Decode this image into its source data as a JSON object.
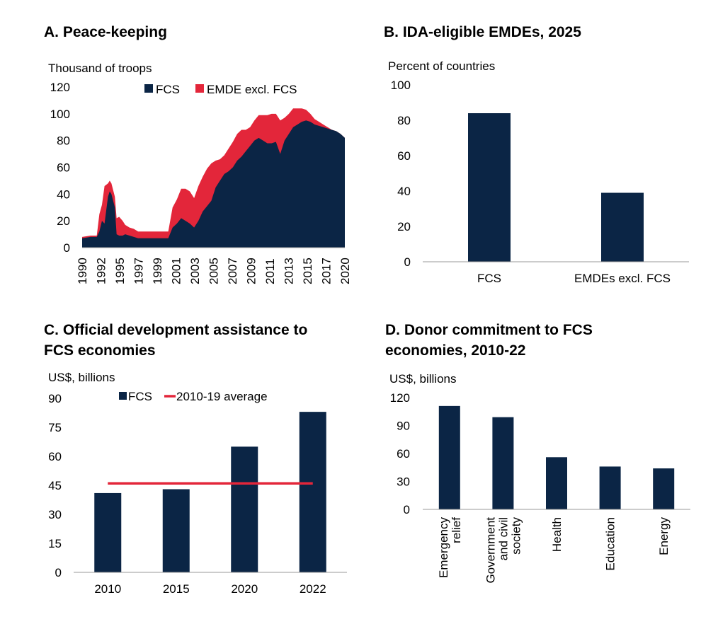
{
  "colors": {
    "navy": "#0b2545",
    "red": "#e3263a",
    "axis": "#999999"
  },
  "panels": {
    "a": {
      "title": "A. Peace-keeping",
      "unit": "Thousand of troops"
    },
    "b": {
      "title": "B. IDA-eligible EMDEs, 2025",
      "unit": "Percent of countries"
    },
    "c": {
      "title_line1": "C. Official development assistance to",
      "title_line2": "FCS economies",
      "unit": "US$, billions"
    },
    "d": {
      "title_line1": "D. Donor commitment to FCS",
      "title_line2": "economies, 2010-22",
      "unit": "US$, billions"
    }
  },
  "chart_data": [
    {
      "id": "a",
      "type": "area",
      "title": "A. Peace-keeping",
      "ylabel": "Thousand of troops",
      "ylim": [
        0,
        120
      ],
      "yticks": [
        0,
        20,
        40,
        60,
        80,
        100,
        120
      ],
      "xlim": [
        1990,
        2020.5
      ],
      "xticks": [
        "1990",
        "1992",
        "1995",
        "1997",
        "1999",
        "2001",
        "2003",
        "2005",
        "2007",
        "2009",
        "2011",
        "2013",
        "2015",
        "2017",
        "2020"
      ],
      "legend": [
        "FCS",
        "EMDE excl. FCS"
      ],
      "stacked": true,
      "x": [
        1990,
        1991,
        1991.7,
        1992,
        1992.3,
        1992.6,
        1993,
        1993.2,
        1993.4,
        1993.6,
        1993.8,
        1994,
        1994.3,
        1994.7,
        1995,
        1995.5,
        1996,
        1996.5,
        1997,
        1997.5,
        1998,
        1998.5,
        1999,
        1999.5,
        2000,
        2000.5,
        2001,
        2001.5,
        2002,
        2002.5,
        2003,
        2003.5,
        2004,
        2004.5,
        2005,
        2005.5,
        2006,
        2006.5,
        2007,
        2007.5,
        2008,
        2008.5,
        2009,
        2009.5,
        2010,
        2010.5,
        2011,
        2011.5,
        2012,
        2012.5,
        2013,
        2013.5,
        2014,
        2014.5,
        2015,
        2015.5,
        2016,
        2016.5,
        2017,
        2017.5,
        2018,
        2018.5,
        2019,
        2019.5,
        2020,
        2020.5
      ],
      "series": [
        {
          "name": "FCS",
          "values": [
            7,
            8,
            8,
            12,
            20,
            18,
            38,
            42,
            40,
            35,
            30,
            10,
            9,
            9,
            10,
            9,
            8,
            7,
            7,
            7,
            7,
            7,
            7,
            7,
            7,
            15,
            18,
            22,
            20,
            18,
            15,
            20,
            27,
            31,
            35,
            45,
            50,
            55,
            57,
            60,
            65,
            68,
            72,
            76,
            80,
            82,
            80,
            78,
            78,
            79,
            70,
            80,
            85,
            90,
            92,
            94,
            95,
            94,
            92,
            91,
            90,
            89,
            88,
            87,
            85,
            82
          ]
        },
        {
          "name": "EMDE excl. FCS",
          "values": [
            1,
            1,
            1,
            13,
            12,
            28,
            10,
            8,
            8,
            8,
            8,
            12,
            14,
            11,
            7,
            6,
            6,
            5,
            5,
            5,
            5,
            5,
            5,
            5,
            5,
            15,
            18,
            22,
            24,
            24,
            22,
            26,
            26,
            28,
            28,
            20,
            16,
            14,
            17,
            19,
            20,
            20,
            16,
            14,
            15,
            17,
            19,
            21,
            22,
            21,
            25,
            17,
            15,
            14,
            12,
            10,
            8,
            6,
            4,
            3,
            2,
            1,
            0,
            0,
            0,
            0
          ]
        }
      ]
    },
    {
      "id": "b",
      "type": "bar",
      "title": "B. IDA-eligible EMDEs, 2025",
      "ylabel": "Percent of countries",
      "ylim": [
        0,
        100
      ],
      "yticks": [
        0,
        20,
        40,
        60,
        80,
        100
      ],
      "categories": [
        "FCS",
        "EMDEs excl. FCS"
      ],
      "values": [
        84,
        39
      ]
    },
    {
      "id": "c",
      "type": "bar",
      "title": "C. Official development assistance to FCS economies",
      "ylabel": "US$, billions",
      "ylim": [
        0,
        90
      ],
      "yticks": [
        0,
        15,
        30,
        45,
        60,
        75,
        90
      ],
      "categories": [
        "2010",
        "2015",
        "2020",
        "2022"
      ],
      "legend": [
        "FCS",
        "2010-19 average"
      ],
      "series": [
        {
          "name": "FCS",
          "values": [
            41,
            43,
            65,
            83
          ]
        },
        {
          "name": "2010-19 average",
          "values": [
            46,
            46,
            46,
            46
          ]
        }
      ]
    },
    {
      "id": "d",
      "type": "bar",
      "title": "D. Donor commitment to FCS economies, 2010-22",
      "ylabel": "US$, billions",
      "ylim": [
        0,
        120
      ],
      "yticks": [
        0,
        30,
        60,
        90,
        120
      ],
      "categories": [
        [
          "Emergency",
          "relief"
        ],
        [
          "Government",
          "and civil",
          "society"
        ],
        [
          "Health"
        ],
        [
          "Education"
        ],
        [
          "Energy"
        ]
      ],
      "values": [
        111,
        99,
        56,
        46,
        44
      ]
    }
  ]
}
